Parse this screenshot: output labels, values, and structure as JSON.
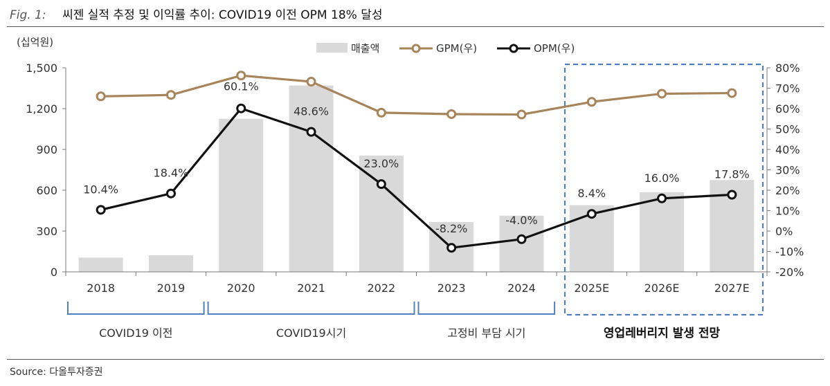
{
  "figure": {
    "label": "Fig. 1:",
    "title": "씨젠 실적 추정 및 이익률 추이: COVID19 이전 OPM 18% 달성",
    "source": "Source: 다올투자증권"
  },
  "chart_data": {
    "type": "bar",
    "categories": [
      "2018",
      "2019",
      "2020",
      "2021",
      "2022",
      "2023",
      "2024",
      "2025E",
      "2026E",
      "2027E"
    ],
    "y_left": {
      "unit_label": "(십억원)",
      "range": [
        0,
        1500
      ],
      "ticks": [
        "0",
        "300",
        "600",
        "900",
        "1,200",
        "1,500"
      ]
    },
    "y_right": {
      "range": [
        -20,
        80
      ],
      "ticks": [
        "-20%",
        "-10%",
        "0%",
        "10%",
        "20%",
        "30%",
        "40%",
        "50%",
        "60%",
        "70%",
        "80%"
      ]
    },
    "series": [
      {
        "name": "매출액",
        "type": "bar",
        "axis": "left",
        "color": "#d9d9d9",
        "values": [
          105,
          122,
          1125,
          1370,
          855,
          366,
          413,
          490,
          585,
          675
        ]
      },
      {
        "name": "GPM(우)",
        "type": "line",
        "axis": "right",
        "color": "#a8845a",
        "values": [
          66.0,
          66.7,
          76.2,
          73.2,
          58.0,
          57.3,
          57.1,
          63.3,
          67.3,
          67.6
        ]
      },
      {
        "name": "OPM(우)",
        "type": "line",
        "axis": "right",
        "color": "#111111",
        "values": [
          10.4,
          18.4,
          60.1,
          48.6,
          23.0,
          -8.2,
          -4.0,
          8.4,
          16.0,
          17.8
        ],
        "labels": [
          "10.4%",
          "18.4%",
          "60.1%",
          "48.6%",
          "23.0%",
          "-8.2%",
          "-4.0%",
          "8.4%",
          "16.0%",
          "17.8%"
        ]
      }
    ],
    "groups": [
      {
        "label": "COVID19 이전",
        "from": 0,
        "to": 1,
        "style": "bracket"
      },
      {
        "label": "COVID19시기",
        "from": 2,
        "to": 4,
        "style": "bracket"
      },
      {
        "label": "고정비 부담 시기",
        "from": 5,
        "to": 6,
        "style": "bracket"
      },
      {
        "label": "영업레버리지 발생 전망",
        "from": 7,
        "to": 9,
        "style": "dashed-box"
      }
    ],
    "legend": {
      "position": "top-center"
    },
    "grid": false
  }
}
